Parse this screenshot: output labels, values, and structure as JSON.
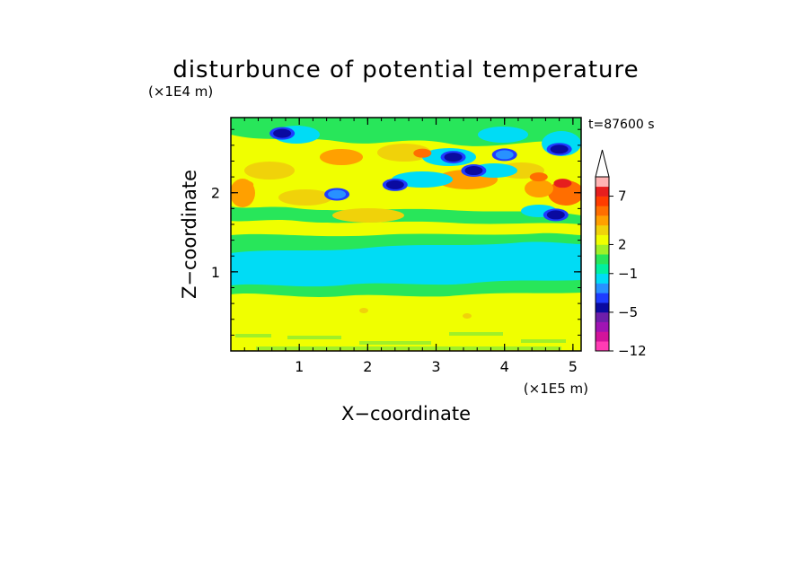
{
  "chart_data": {
    "type": "heatmap",
    "title": "disturbunce of potential temperature",
    "time_label": "t=87600 s",
    "xlabel": "X−coordinate",
    "ylabel": "Z−coordinate",
    "x_unit": "(×1E5 m)",
    "y_unit": "(×1E4 m)",
    "xlim": [
      0,
      5.12
    ],
    "ylim": [
      0,
      2.95
    ],
    "x_ticks": [
      "1",
      "2",
      "3",
      "4",
      "5"
    ],
    "y_ticks": [
      "1",
      "2"
    ],
    "colorbar": {
      "levels": [
        -12,
        -11,
        -9,
        -7,
        -5,
        -4,
        -3,
        -2,
        -1,
        0,
        1,
        2,
        3,
        4,
        5,
        6,
        7,
        9,
        11
      ],
      "labeled": [
        "−12",
        "−5",
        "−1",
        "2",
        "7"
      ],
      "colors": [
        "#ff3cb4",
        "#d2149b",
        "#a014b4",
        "#6e1eaa",
        "#0a0aa0",
        "#1e3cff",
        "#2891ff",
        "#00dcf5",
        "#00f0a0",
        "#28e65a",
        "#a0f028",
        "#f0ff00",
        "#f0d20a",
        "#ffa000",
        "#ff6e00",
        "#ff3c00",
        "#e61e1e",
        "#ffb4b4"
      ],
      "extend": "max"
    },
    "features": [
      {
        "x": 0.75,
        "z": 2.75,
        "value": -5
      },
      {
        "x": 1.55,
        "z": 1.98,
        "value": -3
      },
      {
        "x": 2.4,
        "z": 2.1,
        "value": -5
      },
      {
        "x": 3.55,
        "z": 2.28,
        "value": -5
      },
      {
        "x": 3.25,
        "z": 2.45,
        "value": -5
      },
      {
        "x": 4.0,
        "z": 2.48,
        "value": -3
      },
      {
        "x": 4.8,
        "z": 2.55,
        "value": -5
      },
      {
        "x": 4.75,
        "z": 1.72,
        "value": -5
      },
      {
        "x": 4.85,
        "z": 2.12,
        "value": 7
      },
      {
        "x": 2.8,
        "z": 2.5,
        "value": 5
      },
      {
        "x": 0.2,
        "z": 2.1,
        "value": 4
      },
      {
        "x": 4.5,
        "z": 2.2,
        "value": 5
      }
    ]
  }
}
